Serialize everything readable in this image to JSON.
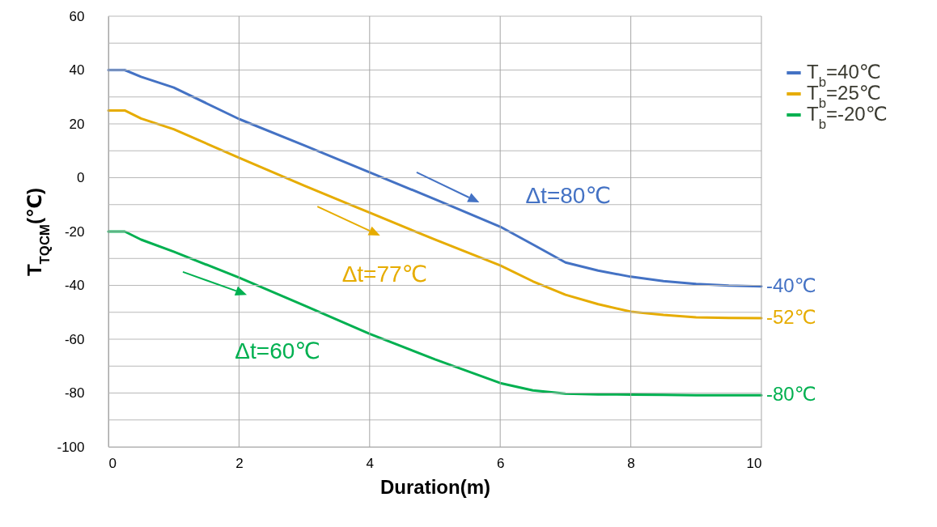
{
  "chart_data": {
    "type": "line",
    "xlabel": "Duration(m)",
    "ylabel": "T$_{TQCM}$(℃)",
    "x": [
      0,
      0.25,
      0.5,
      1,
      2,
      3,
      4,
      5,
      6,
      6.5,
      7,
      7.5,
      8,
      8.5,
      9,
      9.5,
      10
    ],
    "series": [
      {
        "name": "T$_{b}$=40℃",
        "color": "#4472c4",
        "values": [
          40,
          40,
          37.5,
          33.5,
          21.8,
          12,
          2,
          -8,
          -18.2,
          -24.8,
          -31.5,
          -34.5,
          -36.8,
          -38.4,
          -39.5,
          -40.1,
          -40.4
        ]
      },
      {
        "name": "T$_{b}$=25℃",
        "color": "#e6ac00",
        "values": [
          25,
          25,
          22,
          18,
          7.4,
          -3,
          -13,
          -23,
          -32.6,
          -38.5,
          -43.5,
          -47,
          -49.8,
          -51,
          -51.9,
          -52.1,
          -52.2
        ]
      },
      {
        "name": "T$_{b}$=-20℃",
        "color": "#00b050",
        "values": [
          -20,
          -20,
          -23,
          -27.5,
          -37.1,
          -47.5,
          -58,
          -67.5,
          -76.3,
          -79,
          -80.2,
          -80.5,
          -80.6,
          -80.7,
          -80.8,
          -80.8,
          -80.8
        ]
      }
    ],
    "xlim": [
      0,
      10
    ],
    "xticks": [
      0,
      2,
      4,
      6,
      8,
      10
    ],
    "ylim": [
      -100,
      60
    ],
    "yticks": [
      -100,
      {
        "value": -90,
        "label": null
      },
      -80,
      {
        "value": -70,
        "label": null
      },
      -60,
      {
        "value": -50,
        "label": null
      },
      -40,
      {
        "value": -30,
        "label": null
      },
      -20,
      {
        "value": -10,
        "label": null
      },
      0,
      {
        "value": 10,
        "label": null
      },
      20,
      {
        "value": 30,
        "label": null
      },
      40,
      {
        "value": 50,
        "label": null
      },
      60
    ],
    "grid": true,
    "legend": "top right",
    "marker": "none",
    "line_style": "solid",
    "annotations": [
      "Δt=80℃",
      "Δt=77℃",
      "Δt=60℃",
      "-40℃",
      "-52℃",
      "-80℃"
    ]
  }
}
